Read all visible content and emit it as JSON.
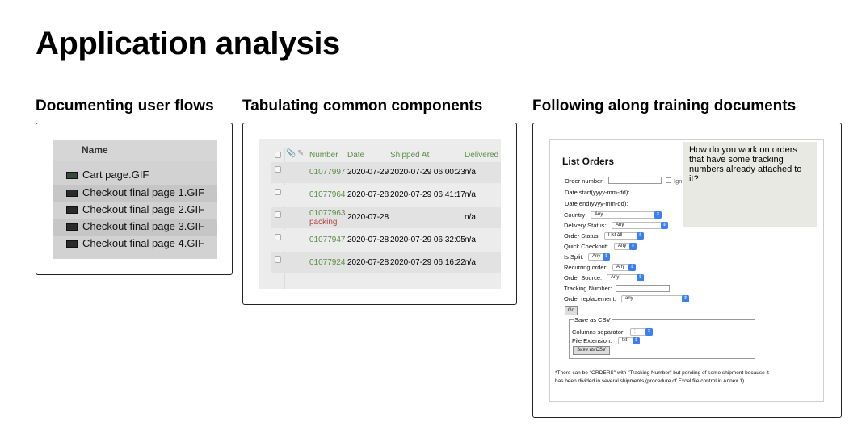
{
  "title": "Application analysis",
  "sections": [
    {
      "title": "Documenting user flows"
    },
    {
      "title": "Tabulating common components"
    },
    {
      "title": "Following along training documents"
    }
  ],
  "file_list": {
    "header": "Name",
    "files": [
      "Cart page.GIF",
      "Checkout final page 1.GIF",
      "Checkout final page 2.GIF",
      "Checkout final page 3.GIF",
      "Checkout final page 4.GIF"
    ]
  },
  "orders_table": {
    "headers": {
      "number": "Number",
      "date": "Date",
      "shipped_at": "Shipped At",
      "delivered": "Delivered"
    },
    "rows": [
      {
        "number": "01077997",
        "date": "2020-07-29",
        "shipped_at": "2020-07-29 06:00:23",
        "delivered": "n/a",
        "status": ""
      },
      {
        "number": "01077964",
        "date": "2020-07-28",
        "shipped_at": "2020-07-29 06:41:17",
        "delivered": "n/a",
        "status": ""
      },
      {
        "number": "01077963",
        "date": "2020-07-28",
        "shipped_at": "",
        "delivered": "n/a",
        "status": "packing"
      },
      {
        "number": "01077947",
        "date": "2020-07-28",
        "shipped_at": "2020-07-29 06:32:05",
        "delivered": "n/a",
        "status": ""
      },
      {
        "number": "01077924",
        "date": "2020-07-28",
        "shipped_at": "2020-07-29 06:16:22",
        "delivered": "n/a",
        "status": ""
      }
    ]
  },
  "list_orders": {
    "title": "List Orders",
    "tooltip": "How do you work on orders that have some tracking numbers already attached to it?",
    "order_number_label": "Order number:",
    "ign_label": "Ign",
    "date_start_label": "Date start(yyyy-mm-dd):",
    "date_end_label": "Date end(yyyy-mm-dd):",
    "country_label": "Country:",
    "country_value": "Any",
    "delivery_status_label": "Delivery Status:",
    "delivery_status_value": "Any",
    "order_status_label": "Order Status:",
    "order_status_value": "List All",
    "quick_checkout_label": "Quick Checkout:",
    "quick_checkout_value": "Any",
    "is_split_label": "Is Split:",
    "is_split_value": "Any",
    "recurring_order_label": "Recurring order:",
    "recurring_order_value": "Any",
    "order_source_label": "Order Source:",
    "order_source_value": "Any",
    "tracking_number_label": "Tracking Number:",
    "order_replacement_label": "Order replacement:",
    "order_replacement_value": "any",
    "go_button": "Go",
    "save_as_csv_legend": "Save as CSV",
    "columns_separator_label": "Columns separator:",
    "columns_separator_value": ";",
    "file_extension_label": "File Extension:",
    "file_extension_value": "txt",
    "save_csv_button": "Save as CSV",
    "footnote": "*There can be \"ORDERS\" with \"Tracking Number\" but pending of some shipment because it has been divided in several shipments (procedure of Excel file control in Annex 1)"
  }
}
